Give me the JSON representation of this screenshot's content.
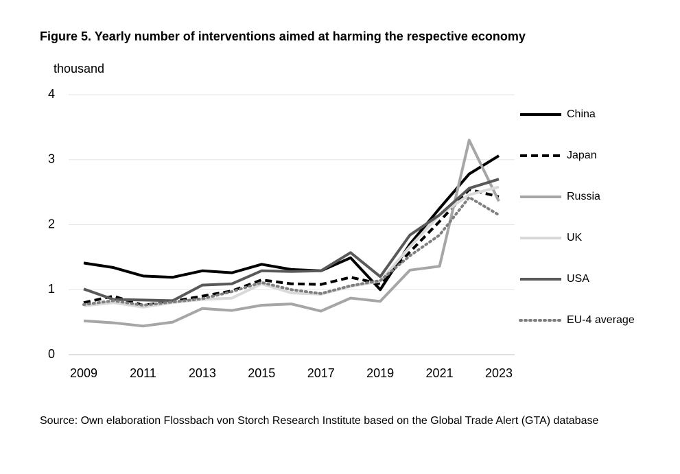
{
  "chart_data": {
    "type": "line",
    "title": "Figure 5. Yearly number of interventions aimed at harming the respective economy",
    "y_label": "thousand",
    "source": "Source: Own elaboration Flossbach von Storch Research Institute based on the Global Trade Alert (GTA) database",
    "x": [
      2009,
      2010,
      2011,
      2012,
      2013,
      2014,
      2015,
      2016,
      2017,
      2018,
      2019,
      2020,
      2021,
      2022,
      2023
    ],
    "xlim": [
      2009,
      2023
    ],
    "xticks": [
      2009,
      2011,
      2013,
      2015,
      2017,
      2019,
      2021,
      2023
    ],
    "ylim": [
      0,
      4
    ],
    "yticks": [
      0,
      1,
      2,
      3,
      4
    ],
    "grid": true,
    "legend": "right",
    "series": [
      {
        "name": "China",
        "color": "#000000",
        "dash": "solid",
        "values": [
          1.41,
          1.34,
          1.21,
          1.19,
          1.29,
          1.26,
          1.39,
          1.31,
          1.29,
          1.49,
          1.0,
          1.7,
          2.25,
          2.78,
          3.06
        ]
      },
      {
        "name": "Japan",
        "color": "#000000",
        "dash": "dashed",
        "values": [
          0.8,
          0.9,
          0.76,
          0.82,
          0.9,
          0.98,
          1.15,
          1.09,
          1.08,
          1.19,
          1.09,
          1.58,
          2.05,
          2.54,
          2.43
        ]
      },
      {
        "name": "Russia",
        "color": "#a6a6a6",
        "dash": "solid",
        "values": [
          0.52,
          0.49,
          0.44,
          0.5,
          0.71,
          0.68,
          0.76,
          0.78,
          0.67,
          0.87,
          0.82,
          1.3,
          1.36,
          3.3,
          2.36
        ]
      },
      {
        "name": "UK",
        "color": "#d9d9d9",
        "dash": "solid",
        "values": [
          0.75,
          0.8,
          0.73,
          0.8,
          0.85,
          0.87,
          1.09,
          0.95,
          0.93,
          1.05,
          1.13,
          1.66,
          2.15,
          2.46,
          2.58
        ]
      },
      {
        "name": "USA",
        "color": "#595959",
        "dash": "solid",
        "values": [
          1.01,
          0.85,
          0.84,
          0.83,
          1.07,
          1.09,
          1.29,
          1.28,
          1.29,
          1.57,
          1.2,
          1.84,
          2.15,
          2.56,
          2.7
        ]
      },
      {
        "name": "EU-4 average",
        "color": "#7f7f7f",
        "dash": "dotted",
        "values": [
          0.77,
          0.83,
          0.76,
          0.81,
          0.86,
          0.97,
          1.11,
          1.0,
          0.94,
          1.06,
          1.14,
          1.52,
          1.84,
          2.42,
          2.15
        ]
      }
    ]
  }
}
